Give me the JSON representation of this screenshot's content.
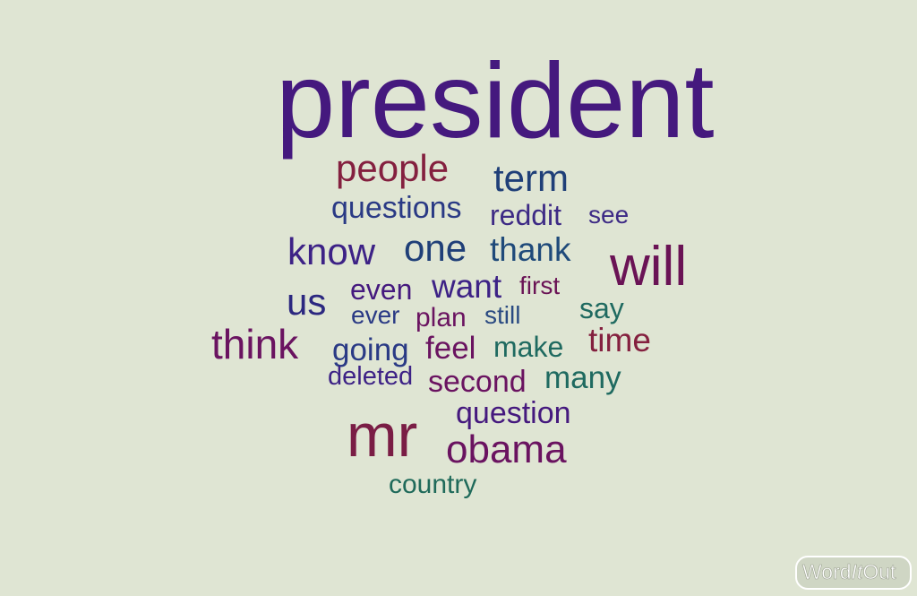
{
  "cloud": {
    "background": "#dfe5d3",
    "words": [
      {
        "text": "president",
        "color": "#45197e"
      },
      {
        "text": "people",
        "color": "#84203f"
      },
      {
        "text": "term",
        "color": "#1f3f78"
      },
      {
        "text": "questions",
        "color": "#2a3a85"
      },
      {
        "text": "reddit",
        "color": "#3d2a85"
      },
      {
        "text": "see",
        "color": "#3d2a85"
      },
      {
        "text": "know",
        "color": "#3d2286"
      },
      {
        "text": "one",
        "color": "#1f3f78"
      },
      {
        "text": "thank",
        "color": "#1f4a7a"
      },
      {
        "text": "will",
        "color": "#6a1355"
      },
      {
        "text": "us",
        "color": "#2c2880"
      },
      {
        "text": "even",
        "color": "#45197e"
      },
      {
        "text": "want",
        "color": "#3d2286"
      },
      {
        "text": "first",
        "color": "#6a1355"
      },
      {
        "text": "ever",
        "color": "#2a3a85"
      },
      {
        "text": "plan",
        "color": "#6a1360"
      },
      {
        "text": "still",
        "color": "#2a4a82"
      },
      {
        "text": "say",
        "color": "#1f6a60"
      },
      {
        "text": "think",
        "color": "#6a1360"
      },
      {
        "text": "going",
        "color": "#2a3a85"
      },
      {
        "text": "feel",
        "color": "#6a1360"
      },
      {
        "text": "make",
        "color": "#1f6a60"
      },
      {
        "text": "time",
        "color": "#84203f"
      },
      {
        "text": "deleted",
        "color": "#3d2286"
      },
      {
        "text": "second",
        "color": "#6a1360"
      },
      {
        "text": "many",
        "color": "#1f6a60"
      },
      {
        "text": "question",
        "color": "#45197e"
      },
      {
        "text": "mr",
        "color": "#7a1d45"
      },
      {
        "text": "obama",
        "color": "#6a1360"
      },
      {
        "text": "country",
        "color": "#1f6a5a"
      }
    ]
  },
  "logo": {
    "text_word": "Word",
    "text_it": "It",
    "text_out": "Out",
    "color": "#ffffff"
  }
}
